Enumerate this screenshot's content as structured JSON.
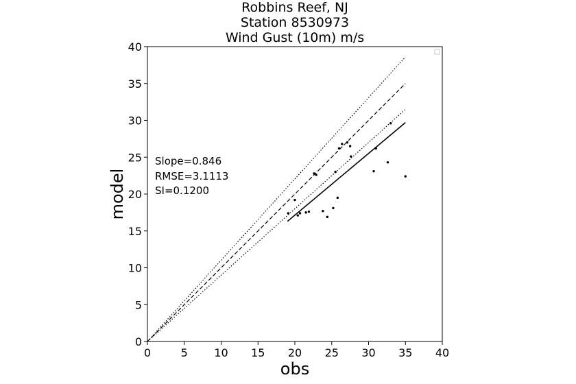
{
  "chart_data": {
    "type": "scatter",
    "title_lines": [
      "Robbins Reef, NJ",
      "Station 8530973",
      "Wind Gust (10m) m/s"
    ],
    "xlabel": "obs",
    "ylabel": "model",
    "xlim": [
      0,
      40
    ],
    "ylim": [
      0,
      40
    ],
    "xticks": [
      0,
      5,
      10,
      15,
      20,
      25,
      30,
      35,
      40
    ],
    "yticks": [
      0,
      5,
      10,
      15,
      20,
      25,
      30,
      35,
      40
    ],
    "grid": false,
    "legend": "top-right (empty)",
    "stats": [
      "Slope=0.846",
      "RMSE=3.1113",
      "SI=0.1200"
    ],
    "points": [
      [
        19.1,
        17.4
      ],
      [
        20.0,
        19.2
      ],
      [
        20.4,
        17.1
      ],
      [
        20.7,
        17.4
      ],
      [
        21.5,
        17.5
      ],
      [
        21.9,
        17.6
      ],
      [
        22.6,
        22.8
      ],
      [
        22.9,
        22.6
      ],
      [
        23.8,
        17.7
      ],
      [
        24.4,
        16.9
      ],
      [
        25.2,
        18.1
      ],
      [
        25.5,
        23.0
      ],
      [
        25.8,
        19.5
      ],
      [
        26.0,
        26.2
      ],
      [
        26.4,
        26.8
      ],
      [
        27.1,
        27.0
      ],
      [
        27.5,
        26.5
      ],
      [
        27.6,
        25.1
      ],
      [
        30.7,
        23.1
      ],
      [
        31.0,
        26.2
      ],
      [
        32.6,
        24.3
      ],
      [
        33.0,
        29.6
      ],
      [
        35.0,
        22.4
      ]
    ],
    "lines": {
      "one_to_one": {
        "from": [
          0,
          0
        ],
        "to": [
          35,
          35
        ],
        "style": "dashed"
      },
      "upper_bound": {
        "from": [
          0,
          0
        ],
        "to": [
          35,
          38.6
        ],
        "style": "dotted"
      },
      "lower_bound": {
        "from": [
          0,
          0
        ],
        "to": [
          35,
          31.5
        ],
        "style": "dotted"
      },
      "fit": {
        "from": [
          19.0,
          16.3
        ],
        "to": [
          35.0,
          29.7
        ],
        "style": "solid"
      }
    },
    "colors": {
      "points": "#000000",
      "lines": "#000000",
      "background": "#ffffff"
    }
  }
}
